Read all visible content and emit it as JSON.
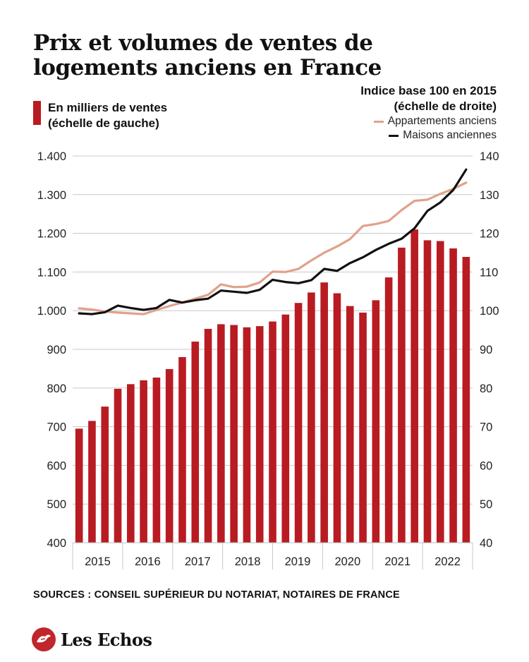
{
  "title": "Prix et volumes de ventes de logements anciens en France",
  "legend": {
    "left_label_1": "En milliers de ventes",
    "left_label_2": "(échelle de gauche)",
    "right_header_1": "Indice base 100 en 2015",
    "right_header_2": "(échelle de droite)",
    "series_1": "Appartements anciens",
    "series_2": "Maisons anciennes"
  },
  "colors": {
    "bars": "#b81c22",
    "appartements": "#e0a28a",
    "maisons": "#111111",
    "logo": "#c0262b"
  },
  "sources": "SOURCES : CONSEIL SUPÉRIEUR DU NOTARIAT, NOTAIRES DE FRANCE",
  "logo": {
    "icon": "les-echos-logo-icon",
    "text": "Les Echos"
  },
  "chart_data": {
    "type": "bar",
    "x_labels": [
      "2015",
      "2016",
      "2017",
      "2018",
      "2019",
      "2020",
      "2021",
      "2022"
    ],
    "left_axis": {
      "ylim": [
        400,
        1400
      ],
      "ticks": [
        "400",
        "500",
        "600",
        "700",
        "800",
        "900",
        "1.000",
        "1.100",
        "1.200",
        "1.300",
        "1.400"
      ]
    },
    "right_axis": {
      "ylim": [
        40,
        140
      ],
      "ticks": [
        "40",
        "50",
        "60",
        "70",
        "80",
        "90",
        "100",
        "110",
        "120",
        "130",
        "140"
      ]
    },
    "bars": [
      695,
      715,
      752,
      798,
      810,
      820,
      827,
      849,
      880,
      920,
      953,
      965,
      963,
      957,
      960,
      972,
      990,
      1020,
      1047,
      1073,
      1045,
      1012,
      995,
      1027,
      1086,
      1163,
      1210,
      1182,
      1180,
      1161,
      1139
    ],
    "series": [
      {
        "name": "Appartements anciens",
        "axis": "right",
        "values": [
          100.6,
          100.3,
          99.8,
          99.5,
          99.3,
          99.1,
          100.2,
          101.2,
          102.1,
          103.1,
          104.1,
          106.8,
          106.1,
          106.2,
          107.3,
          110.1,
          110.0,
          110.8,
          113.0,
          115.0,
          116.6,
          118.5,
          121.9,
          122.4,
          123.2,
          126.0,
          128.4,
          128.7,
          130.2,
          131.5,
          133.1
        ]
      },
      {
        "name": "Maisons anciennes",
        "axis": "right",
        "values": [
          99.3,
          99.1,
          99.6,
          101.3,
          100.7,
          100.2,
          100.7,
          102.8,
          102.1,
          102.7,
          103.1,
          105.2,
          104.9,
          104.6,
          105.4,
          108.0,
          107.4,
          107.1,
          107.9,
          110.8,
          110.3,
          112.3,
          113.8,
          115.7,
          117.3,
          118.6,
          121.3,
          125.8,
          128.0,
          131.2,
          136.5
        ]
      }
    ]
  }
}
